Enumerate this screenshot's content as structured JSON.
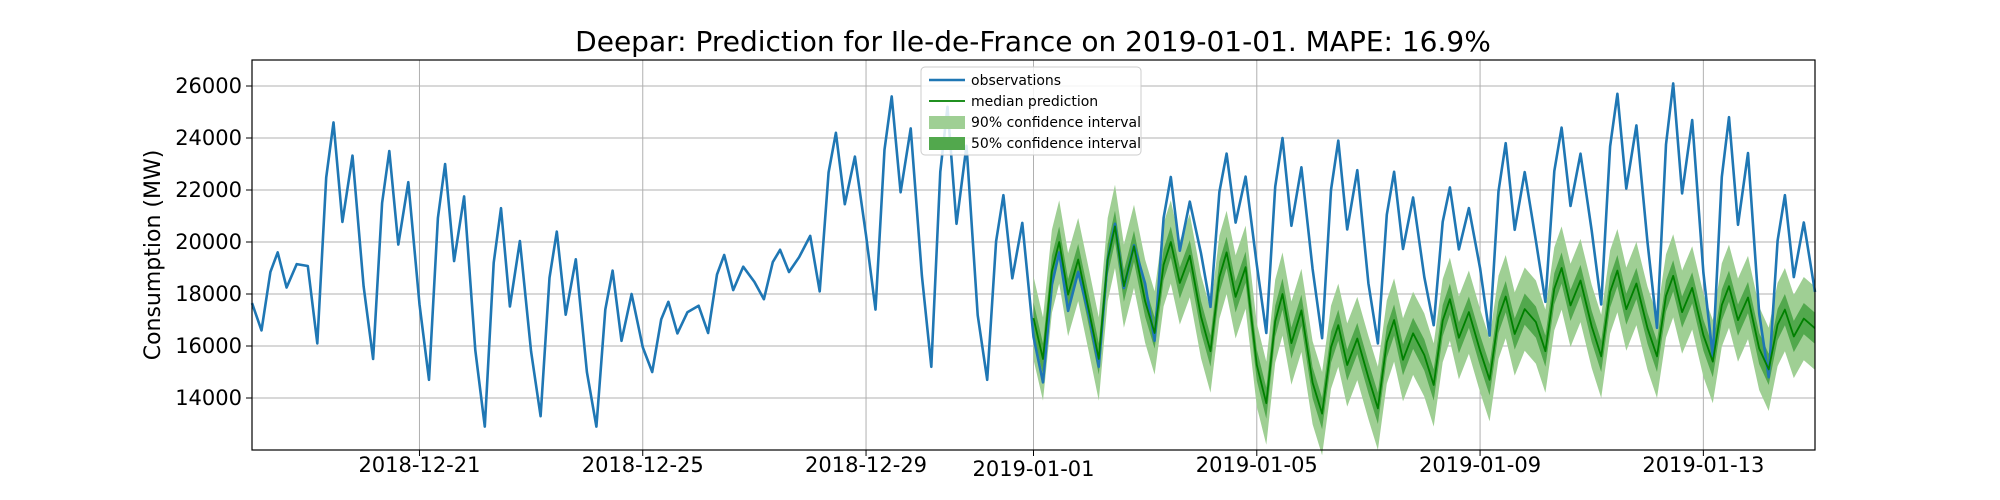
{
  "chart_data": {
    "type": "line",
    "title": "Deepar: Prediction for Ile-de-France on 2019-01-01. MAPE: 16.9%",
    "xlabel": "",
    "ylabel": "Consumption (MW)",
    "xlim": [
      "2018-12-18",
      "2019-01-15"
    ],
    "ylim": [
      12000,
      27000
    ],
    "grid": true,
    "legend_position": "top-center",
    "x_ticks": [
      "2018-12-21",
      "2018-12-25",
      "2018-12-29",
      "2019-01-01",
      "2019-01-05",
      "2019-01-09",
      "2019-01-13"
    ],
    "y_ticks": [
      14000,
      16000,
      18000,
      20000,
      22000,
      24000,
      26000
    ],
    "legend": [
      "observations",
      "median prediction",
      "90% confidence interval",
      "50% confidence interval"
    ],
    "colors": {
      "observations": "#1f77b4",
      "median": "#008000",
      "ci90": "#9fcf94",
      "ci50": "#52a84d",
      "grid": "#b0b0b0"
    },
    "observations": {
      "name": "observations",
      "daily_peaks": [
        [
          "2018-12-18",
          19600
        ],
        [
          "2018-12-19",
          24600
        ],
        [
          "2018-12-20",
          23500
        ],
        [
          "2018-12-21",
          23000
        ],
        [
          "2018-12-22",
          21300
        ],
        [
          "2018-12-23",
          20400
        ],
        [
          "2018-12-24",
          18900
        ],
        [
          "2018-12-25",
          17700
        ],
        [
          "2018-12-26",
          19500
        ],
        [
          "2018-12-27",
          19700
        ],
        [
          "2018-12-28",
          24200
        ],
        [
          "2018-12-29",
          25600
        ],
        [
          "2018-12-30",
          25200
        ],
        [
          "2018-12-31",
          21800
        ],
        [
          "2019-01-01",
          19600
        ],
        [
          "2019-01-02",
          20700
        ],
        [
          "2019-01-03",
          22500
        ],
        [
          "2019-01-04",
          23400
        ],
        [
          "2019-01-05",
          24000
        ],
        [
          "2019-01-06",
          23900
        ],
        [
          "2019-01-07",
          22700
        ],
        [
          "2019-01-08",
          22100
        ],
        [
          "2019-01-09",
          23800
        ],
        [
          "2019-01-10",
          24400
        ],
        [
          "2019-01-11",
          25700
        ],
        [
          "2019-01-12",
          26100
        ],
        [
          "2019-01-13",
          24800
        ],
        [
          "2019-01-14",
          21800
        ],
        [
          "2019-01-15",
          23800
        ]
      ],
      "daily_troughs": [
        [
          "2018-12-18",
          16600
        ],
        [
          "2018-12-19",
          16100
        ],
        [
          "2018-12-20",
          15500
        ],
        [
          "2018-12-21",
          14700
        ],
        [
          "2018-12-22",
          12900
        ],
        [
          "2018-12-23",
          13300
        ],
        [
          "2018-12-24",
          12900
        ],
        [
          "2018-12-25",
          15000
        ],
        [
          "2018-12-26",
          16500
        ],
        [
          "2018-12-27",
          17800
        ],
        [
          "2018-12-28",
          18100
        ],
        [
          "2018-12-29",
          17400
        ],
        [
          "2018-12-30",
          15200
        ],
        [
          "2018-12-31",
          14700
        ],
        [
          "2019-01-01",
          14600
        ],
        [
          "2019-01-02",
          15200
        ],
        [
          "2019-01-03",
          16200
        ],
        [
          "2019-01-04",
          17500
        ],
        [
          "2019-01-05",
          16500
        ],
        [
          "2019-01-06",
          16300
        ],
        [
          "2019-01-07",
          16100
        ],
        [
          "2019-01-08",
          16800
        ],
        [
          "2019-01-09",
          16400
        ],
        [
          "2019-01-10",
          17700
        ],
        [
          "2019-01-11",
          17600
        ],
        [
          "2019-01-12",
          16700
        ],
        [
          "2019-01-13",
          15600
        ],
        [
          "2019-01-14",
          14800
        ],
        [
          "2019-01-15",
          15000
        ]
      ]
    },
    "prediction": {
      "name": "median prediction",
      "daily_peaks": [
        [
          "2019-01-01",
          20000
        ],
        [
          "2019-01-02",
          20600
        ],
        [
          "2019-01-03",
          20000
        ],
        [
          "2019-01-04",
          19600
        ],
        [
          "2019-01-05",
          18000
        ],
        [
          "2019-01-06",
          16800
        ],
        [
          "2019-01-07",
          17000
        ],
        [
          "2019-01-08",
          17800
        ],
        [
          "2019-01-09",
          17900
        ],
        [
          "2019-01-10",
          19000
        ],
        [
          "2019-01-11",
          18900
        ],
        [
          "2019-01-12",
          18700
        ],
        [
          "2019-01-13",
          18300
        ],
        [
          "2019-01-14",
          17400
        ],
        [
          "2019-01-15",
          19800
        ]
      ],
      "daily_troughs": [
        [
          "2019-01-01",
          15500
        ],
        [
          "2019-01-02",
          15500
        ],
        [
          "2019-01-03",
          16500
        ],
        [
          "2019-01-04",
          15800
        ],
        [
          "2019-01-05",
          13800
        ],
        [
          "2019-01-06",
          13400
        ],
        [
          "2019-01-07",
          13600
        ],
        [
          "2019-01-08",
          14500
        ],
        [
          "2019-01-09",
          14700
        ],
        [
          "2019-01-10",
          15800
        ],
        [
          "2019-01-11",
          15600
        ],
        [
          "2019-01-12",
          15600
        ],
        [
          "2019-01-13",
          15400
        ],
        [
          "2019-01-14",
          15100
        ],
        [
          "2019-01-15",
          15000
        ]
      ],
      "ci90_halfwidth": 1600,
      "ci50_halfwidth": 600
    }
  }
}
